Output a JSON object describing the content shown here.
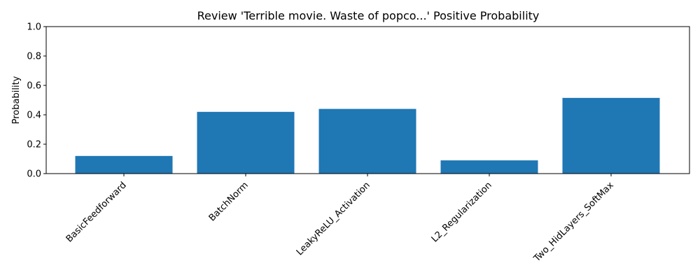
{
  "chart_data": {
    "type": "bar",
    "title": "Review 'Terrible movie. Waste of popco...' Positive Probability",
    "xlabel": "",
    "ylabel": "Probability",
    "categories": [
      "BasicFeedforward",
      "BatchNorm",
      "LeakyReLU_Activation",
      "L2_Regularization",
      "Two_HidLayers_SoftMax"
    ],
    "values": [
      0.12,
      0.42,
      0.44,
      0.09,
      0.515
    ],
    "ylim": [
      0,
      1.0
    ],
    "yticks": [
      0.0,
      0.2,
      0.4,
      0.6,
      0.8,
      1.0
    ],
    "ytick_labels": [
      "0.0",
      "0.2",
      "0.4",
      "0.6",
      "0.8",
      "1.0"
    ],
    "bar_color": "#1f77b4",
    "grid": false,
    "legend": "none"
  }
}
